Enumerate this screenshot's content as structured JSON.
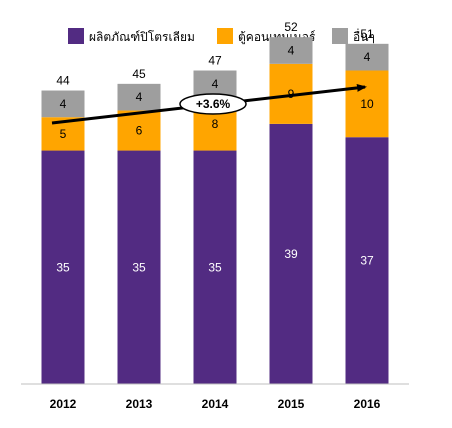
{
  "chart_data": {
    "type": "bar",
    "stacked": true,
    "categories": [
      "2012",
      "2013",
      "2014",
      "2015",
      "2016"
    ],
    "series": [
      {
        "name": "ผลิตภัณฑ์ปิโตรเลียม",
        "color": "#522b82",
        "label_color": "#ffffff",
        "values": [
          35,
          35,
          35,
          39,
          37
        ]
      },
      {
        "name": "ตู้คอนเทนเนอร์",
        "color": "#ffa500",
        "label_color": "#000000",
        "values": [
          5,
          6,
          8,
          9,
          10
        ]
      },
      {
        "name": "อื่นๆ",
        "color": "#9e9e9e",
        "label_color": "#000000",
        "values": [
          4,
          4,
          4,
          4,
          4
        ]
      }
    ],
    "totals": [
      44,
      45,
      47,
      52,
      51
    ],
    "trend_label": "+3.6%",
    "ylim": [
      0,
      57
    ],
    "legend_position": "top",
    "grid": false
  }
}
